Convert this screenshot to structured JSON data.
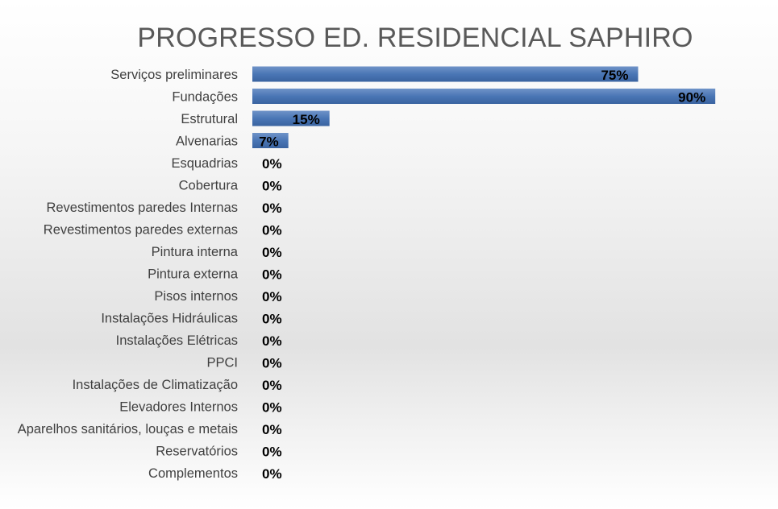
{
  "chart_data": {
    "type": "bar",
    "orientation": "horizontal",
    "title": "PROGRESSO ED. RESIDENCIAL SAPHIRO",
    "xlabel": "",
    "ylabel": "",
    "xlim": [
      0,
      100
    ],
    "grid": false,
    "legend": "none",
    "categories": [
      "Serviços preliminares",
      "Fundações",
      "Estrutural",
      "Alvenarias",
      "Esquadrias",
      "Cobertura",
      "Revestimentos paredes Internas",
      "Revestimentos paredes externas",
      "Pintura interna",
      "Pintura externa",
      "Pisos internos",
      "Instalações Hidráulicas",
      "Instalações Elétricas",
      "PPCI",
      "Instalações de Climatização",
      "Elevadores Internos",
      "Aparelhos sanitários, louças e metais",
      "Reservatórios",
      "Complementos"
    ],
    "values": [
      75,
      90,
      15,
      7,
      0,
      0,
      0,
      0,
      0,
      0,
      0,
      0,
      0,
      0,
      0,
      0,
      0,
      0,
      0
    ],
    "data_labels": [
      "75%",
      "90%",
      "15%",
      "7%",
      "0%",
      "0%",
      "0%",
      "0%",
      "0%",
      "0%",
      "0%",
      "0%",
      "0%",
      "0%",
      "0%",
      "0%",
      "0%",
      "0%",
      "0%"
    ],
    "bar_color": "#4a76b5"
  }
}
